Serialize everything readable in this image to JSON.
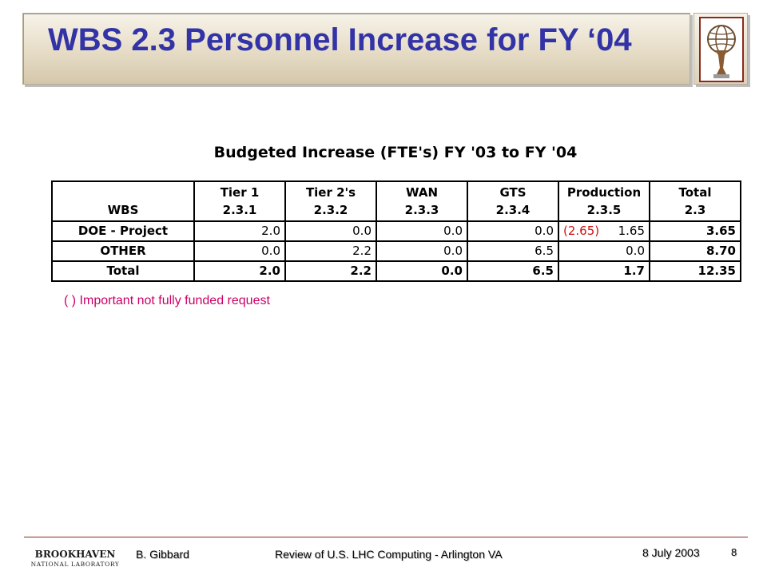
{
  "slide": {
    "title": "WBS 2.3 Personnel Increase for FY ‘04"
  },
  "table": {
    "caption": "Budgeted Increase (FTE's) FY '03 to FY '04",
    "header": {
      "col0": "WBS",
      "columns": [
        {
          "name": "Tier 1",
          "code": "2.3.1"
        },
        {
          "name": "Tier 2's",
          "code": "2.3.2"
        },
        {
          "name": "WAN",
          "code": "2.3.3"
        },
        {
          "name": "GTS",
          "code": "2.3.4"
        },
        {
          "name": "Production",
          "code": "2.3.5"
        },
        {
          "name": "Total",
          "code": "2.3"
        }
      ]
    },
    "rows": [
      {
        "label": "DOE - Project",
        "tier1": "2.0",
        "tier2": "0.0",
        "wan": "0.0",
        "gts": "0.0",
        "production_request": "(2.65)",
        "production": "1.65",
        "total": "3.65"
      },
      {
        "label": "OTHER",
        "tier1": "0.0",
        "tier2": "2.2",
        "wan": "0.0",
        "gts": "6.5",
        "production": "0.0",
        "total": "8.70"
      },
      {
        "label": "Total",
        "tier1": "2.0",
        "tier2": "2.2",
        "wan": "0.0",
        "gts": "6.5",
        "production": "1.7",
        "total": "12.35"
      }
    ]
  },
  "footnote": "( ) Important not fully funded request",
  "footer": {
    "logo_top": "BROOKHAVEN",
    "logo_bottom": "NATIONAL LABORATORY",
    "author": "B. Gibbard",
    "event": "Review of U.S. LHC Computing - Arlington VA",
    "date": "8 July 2003",
    "page": "8"
  },
  "colors": {
    "title": "#3333a8",
    "footnote": "#cc0066",
    "unfunded": "#d01010",
    "title_bar": "#e6dcc6"
  },
  "icons": {
    "corner_logo": "atlas-statue-icon",
    "footer_logo": "brookhaven-logo"
  }
}
